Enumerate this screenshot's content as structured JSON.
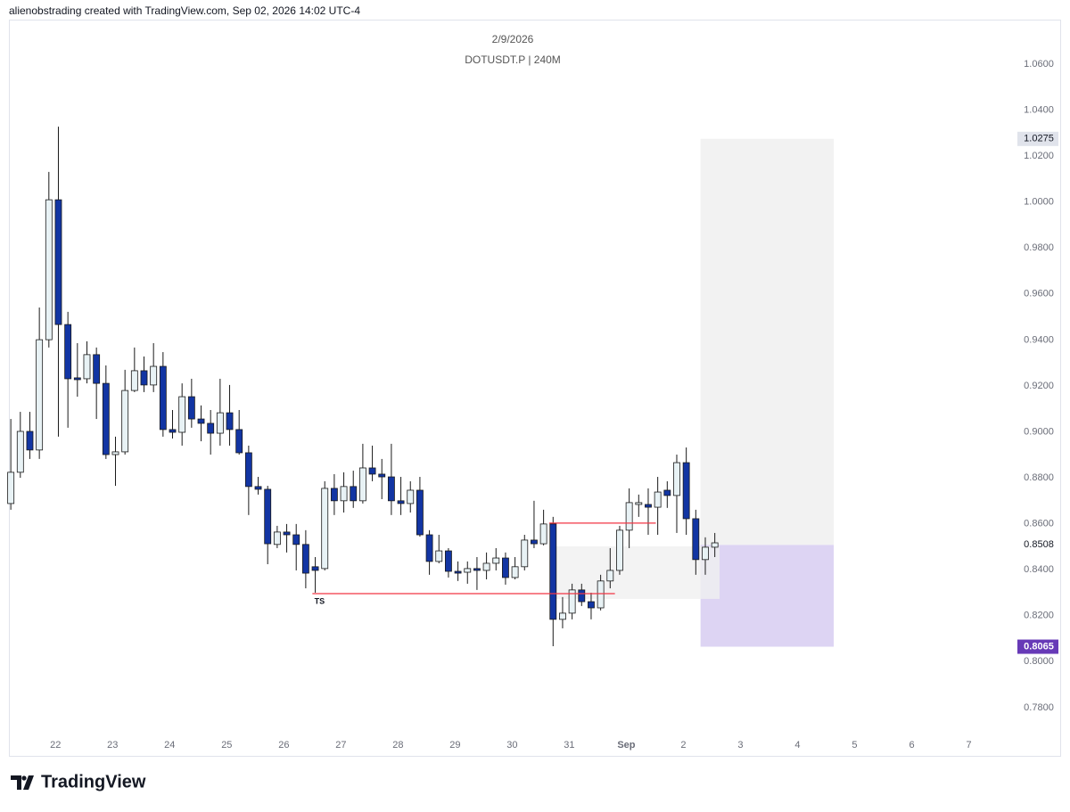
{
  "header": {
    "credit": "alienobstrading created with TradingView.com, Sep 02, 2026 14:02 UTC-4"
  },
  "footer": {
    "brand": "TradingView"
  },
  "chart_data": {
    "type": "candlestick",
    "title": "2/9/2026",
    "subtitle": "DOTUSDT.P | 240M",
    "up_color": "#e8f2f5",
    "down_color": "#1235a3",
    "border_color": "#1a1a1a",
    "grid": false,
    "ylim": [
      0.759,
      1.0794
    ],
    "xlim": [
      -0.2,
      102.9
    ],
    "yticks": [
      {
        "value": 1.06,
        "label": "1.0600"
      },
      {
        "value": 1.04,
        "label": "1.0400"
      },
      {
        "value": 1.02,
        "label": "1.0200"
      },
      {
        "value": 1.0,
        "label": "1.0000"
      },
      {
        "value": 0.98,
        "label": "0.9800"
      },
      {
        "value": 0.96,
        "label": "0.9600"
      },
      {
        "value": 0.94,
        "label": "0.9400"
      },
      {
        "value": 0.92,
        "label": "0.9200"
      },
      {
        "value": 0.9,
        "label": "0.9000"
      },
      {
        "value": 0.88,
        "label": "0.8800"
      },
      {
        "value": 0.86,
        "label": "0.8600"
      },
      {
        "value": 0.84,
        "label": "0.8400"
      },
      {
        "value": 0.82,
        "label": "0.8200"
      },
      {
        "value": 0.8,
        "label": "0.8000"
      },
      {
        "value": 0.78,
        "label": "0.7800"
      }
    ],
    "xticks": [
      {
        "value": 4.7,
        "label": "22"
      },
      {
        "value": 10.7,
        "label": "23"
      },
      {
        "value": 16.7,
        "label": "24"
      },
      {
        "value": 22.7,
        "label": "25"
      },
      {
        "value": 28.7,
        "label": "26"
      },
      {
        "value": 34.7,
        "label": "27"
      },
      {
        "value": 40.7,
        "label": "28"
      },
      {
        "value": 46.7,
        "label": "29"
      },
      {
        "value": 52.7,
        "label": "30"
      },
      {
        "value": 58.7,
        "label": "31"
      },
      {
        "value": 64.7,
        "label": "Sep"
      },
      {
        "value": 70.7,
        "label": "2"
      },
      {
        "value": 76.7,
        "label": "3"
      },
      {
        "value": 82.7,
        "label": "4"
      },
      {
        "value": 88.7,
        "label": "5"
      },
      {
        "value": 94.7,
        "label": "6"
      },
      {
        "value": 100.7,
        "label": "7"
      }
    ],
    "open": [
      0.8688,
      0.8824,
      0.9002,
      0.8921,
      0.9401,
      1.001,
      0.9467,
      0.9235,
      0.9231,
      0.9336,
      0.9211,
      0.8901,
      0.8913,
      0.918,
      0.9266,
      0.9204,
      0.9285,
      0.901,
      0.8998,
      0.9153,
      0.9056,
      0.9037,
      0.8994,
      0.9083,
      0.901,
      0.8909,
      0.8762,
      0.875,
      0.851,
      0.8564,
      0.8552,
      0.851,
      0.8413,
      0.8405,
      0.8754,
      0.87,
      0.8762,
      0.87,
      0.8843,
      0.8816,
      0.8804,
      0.87,
      0.8688,
      0.8746,
      0.8552,
      0.8436,
      0.8482,
      0.8393,
      0.8389,
      0.8405,
      0.8397,
      0.8428,
      0.8451,
      0.8366,
      0.8413,
      0.8529,
      0.8513,
      0.8599,
      0.8184,
      0.8211,
      0.8312,
      0.8261,
      0.8234,
      0.8351,
      0.8397,
      0.8572,
      0.8684,
      0.8684,
      0.8672,
      0.8746,
      0.8723,
      0.8866,
      0.8622,
      0.8444,
      0.8498
    ],
    "high": [
      0.9056,
      0.9087,
      0.9087,
      0.9541,
      1.0131,
      1.0328,
      0.9522,
      0.9386,
      0.9394,
      0.9367,
      0.9289,
      0.8979,
      0.927,
      0.9367,
      0.9328,
      0.9386,
      0.9347,
      0.9095,
      0.9211,
      0.9231,
      0.9115,
      0.9095,
      0.9231,
      0.9204,
      0.9095,
      0.894,
      0.8804,
      0.8765,
      0.8591,
      0.8599,
      0.8599,
      0.8572,
      0.8455,
      0.8785,
      0.8816,
      0.8824,
      0.8831,
      0.8948,
      0.894,
      0.8882,
      0.8948,
      0.8804,
      0.8785,
      0.8804,
      0.8572,
      0.8552,
      0.8494,
      0.8436,
      0.8436,
      0.8455,
      0.8475,
      0.8494,
      0.8475,
      0.8455,
      0.8552,
      0.87,
      0.8661,
      0.863,
      0.8281,
      0.8339,
      0.8339,
      0.83,
      0.8378,
      0.8494,
      0.8591,
      0.8754,
      0.8727,
      0.8754,
      0.8804,
      0.8785,
      0.8901,
      0.8932,
      0.8661,
      0.8541,
      0.856
    ],
    "low": [
      0.8661,
      0.88,
      0.8882,
      0.8882,
      0.9367,
      0.8979,
      0.9018,
      0.9153,
      0.9211,
      0.9056,
      0.8882,
      0.8765,
      0.8901,
      0.9173,
      0.9173,
      0.9173,
      0.8979,
      0.8971,
      0.894,
      0.9018,
      0.8959,
      0.8901,
      0.894,
      0.894,
      0.8901,
      0.8638,
      0.8727,
      0.8424,
      0.8494,
      0.8475,
      0.8397,
      0.8319,
      0.83,
      0.8397,
      0.8638,
      0.8649,
      0.8669,
      0.8688,
      0.8785,
      0.8707,
      0.8638,
      0.8638,
      0.8649,
      0.8544,
      0.8378,
      0.8428,
      0.8366,
      0.8351,
      0.8339,
      0.8312,
      0.8358,
      0.8397,
      0.8335,
      0.8358,
      0.8397,
      0.8494,
      0.8506,
      0.8067,
      0.8145,
      0.8184,
      0.8242,
      0.8184,
      0.8223,
      0.8319,
      0.8378,
      0.8494,
      0.863,
      0.8552,
      0.8552,
      0.8669,
      0.856,
      0.8552,
      0.8378,
      0.8378,
      0.8455
    ],
    "close": [
      0.8824,
      0.9002,
      0.8921,
      0.9401,
      1.001,
      0.9467,
      0.9231,
      0.9227,
      0.9336,
      0.9211,
      0.8901,
      0.8913,
      0.918,
      0.9266,
      0.9204,
      0.9285,
      0.901,
      0.8998,
      0.9153,
      0.9056,
      0.9037,
      0.8994,
      0.9083,
      0.901,
      0.8909,
      0.8762,
      0.875,
      0.8513,
      0.8564,
      0.8552,
      0.851,
      0.8385,
      0.8397,
      0.8754,
      0.87,
      0.8762,
      0.87,
      0.8843,
      0.8816,
      0.8804,
      0.87,
      0.8688,
      0.8746,
      0.8552,
      0.8436,
      0.8482,
      0.8393,
      0.8385,
      0.8405,
      0.8397,
      0.8428,
      0.8451,
      0.8366,
      0.8413,
      0.8529,
      0.8513,
      0.8599,
      0.8184,
      0.8211,
      0.8312,
      0.8261,
      0.8234,
      0.8351,
      0.8397,
      0.8572,
      0.8692,
      0.8692,
      0.8672,
      0.8738,
      0.8723,
      0.8866,
      0.8622,
      0.8444,
      0.8498,
      0.8517
    ],
    "levels": [
      {
        "price": 0.8296,
        "from": 31.7,
        "to": 63.5,
        "color": "#f23645",
        "label": "TS"
      },
      {
        "price": 0.8603,
        "from": 56.6,
        "to": 67.8,
        "color": "#f23645"
      }
    ],
    "zone": {
      "top": 0.8502,
      "bottom": 0.8273,
      "from": 56.6,
      "to": 74.5,
      "color": "#f0f0f0"
    },
    "position": {
      "from": 72.5,
      "to": 86.5,
      "entry": 0.8508,
      "target": 1.0275,
      "stop": 0.8065,
      "target_color": "#eeeeee",
      "stop_color": "#ddd4f3",
      "stop_label_color": "#673ab7",
      "target_label_color": "#e0e3eb"
    }
  }
}
